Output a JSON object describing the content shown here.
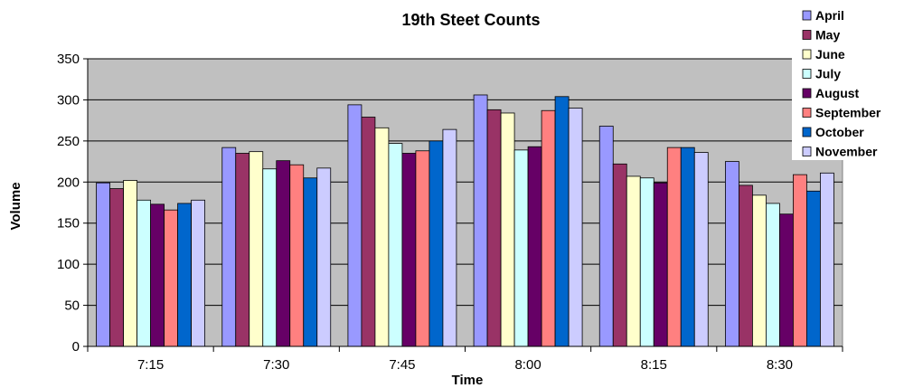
{
  "chart_data": {
    "type": "bar",
    "title": "19th Steet Counts",
    "xlabel": "Time",
    "ylabel": "Volume",
    "ylim": [
      0,
      350
    ],
    "yticks": [
      0,
      50,
      100,
      150,
      200,
      250,
      300,
      350
    ],
    "grid": true,
    "legend_position": "top-right",
    "categories": [
      "7:15",
      "7:30",
      "7:45",
      "8:00",
      "8:15",
      "8:30"
    ],
    "series": [
      {
        "name": "April",
        "color": "#9999ff",
        "values": [
          199,
          242,
          294,
          306,
          268,
          225
        ]
      },
      {
        "name": "May",
        "color": "#993366",
        "values": [
          192,
          235,
          279,
          288,
          222,
          196
        ]
      },
      {
        "name": "June",
        "color": "#ffffcc",
        "values": [
          202,
          237,
          266,
          284,
          207,
          184
        ]
      },
      {
        "name": "July",
        "color": "#ccffff",
        "values": [
          178,
          216,
          247,
          239,
          205,
          174
        ]
      },
      {
        "name": "August",
        "color": "#660066",
        "values": [
          173,
          226,
          235,
          243,
          199,
          161
        ]
      },
      {
        "name": "September",
        "color": "#ff8080",
        "values": [
          166,
          221,
          238,
          287,
          242,
          209
        ]
      },
      {
        "name": "October",
        "color": "#0066cc",
        "values": [
          174,
          205,
          250,
          304,
          242,
          189
        ]
      },
      {
        "name": "November",
        "color": "#ccccff",
        "values": [
          178,
          217,
          264,
          290,
          236,
          211
        ]
      }
    ],
    "plot_background": "#c0c0c0"
  }
}
